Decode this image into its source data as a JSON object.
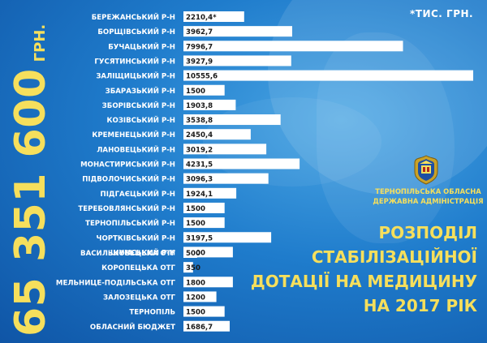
{
  "total": {
    "amount": "65 351 600",
    "unit": "ГРН."
  },
  "note": "*ТИС. ГРН.",
  "organization": {
    "line1": "ТЕРНОПІЛЬСЬКА ОБЛАСНА",
    "line2": "ДЕРЖАВНА АДМІНІСТРАЦІЯ"
  },
  "headline": {
    "line1": "РОЗПОДІЛ",
    "line2": "СТАБІЛІЗАЦІЙНОЇ",
    "line3": "ДОТАЦІЇ НА МЕДИЦИНУ",
    "line4": "НА 2017 РІК"
  },
  "colors": {
    "accent": "#f6df5c",
    "bar": "#ffffff",
    "background": "#1f7ccc"
  },
  "emblem_icon": "coat-of-arms-icon",
  "chart_data": {
    "type": "bar",
    "orientation": "horizontal",
    "title": "",
    "xlabel": "",
    "ylabel": "",
    "unit": "тис. грн.",
    "grid": false,
    "groups": [
      {
        "categories": [
          "БЕРЕЖАНСЬКИЙ Р-Н",
          "БОРЩІВСЬКИЙ Р-Н",
          "БУЧАЦЬКИЙ Р-Н",
          "ГУСЯТИНСЬКИЙ Р-Н",
          "ЗАЛІЩИЦЬКИЙ Р-Н",
          "ЗБАРАЗЬКИЙ Р-Н",
          "ЗБОРІВСЬКИЙ Р-Н",
          "КОЗІВСЬКИЙ Р-Н",
          "КРЕМЕНЕЦЬКИЙ Р-Н",
          "ЛАНОВЕЦЬКИЙ Р-Н",
          "МОНАСТИРИСЬКИЙ Р-Н",
          "ПІДВОЛОЧИСЬКИЙ Р-Н",
          "ПІДГАЄЦЬКИЙ Р-Н",
          "ТЕРЕБОВЛЯНСЬКИЙ Р-Н",
          "ТЕРНОПІЛЬСЬКИЙ Р-Н",
          "ЧОРТКІВСЬКИЙ Р-Н",
          "ШУМСЬКИЙ Р-Н"
        ],
        "values": [
          2210.4,
          3962.7,
          7996.7,
          3927.9,
          10555.6,
          1500,
          1903.8,
          3538.8,
          2450.4,
          3019.2,
          4231.5,
          3096.3,
          1924.1,
          1500,
          1500,
          3197.5,
          1800
        ],
        "value_labels": [
          "2210,4*",
          "3962,7",
          "7996,7",
          "3927,9",
          "10555,6",
          "1500",
          "1903,8",
          "3538,8",
          "2450,4",
          "3019,2",
          "4231,5",
          "3096,3",
          "1924,1",
          "1500",
          "1500",
          "3197,5",
          "1800"
        ]
      },
      {
        "categories": [
          "ВАСИЛЬКОВЕЦЬКА ОТГ",
          "КОРОПЕЦЬКА ОТГ",
          "МЕЛЬНИЦЕ-ПОДІЛЬСЬКА ОТГ",
          "ЗАЛОЗЕЦЬКА ОТГ",
          "ТЕРНОПІЛЬ",
          "ОБЛАСНИЙ БЮДЖЕТ"
        ],
        "values": [
          500,
          350,
          1800,
          1200,
          1500,
          1686.7
        ],
        "value_labels": [
          "500",
          "350",
          "1800",
          "1200",
          "1500",
          "1686,7"
        ]
      }
    ]
  }
}
